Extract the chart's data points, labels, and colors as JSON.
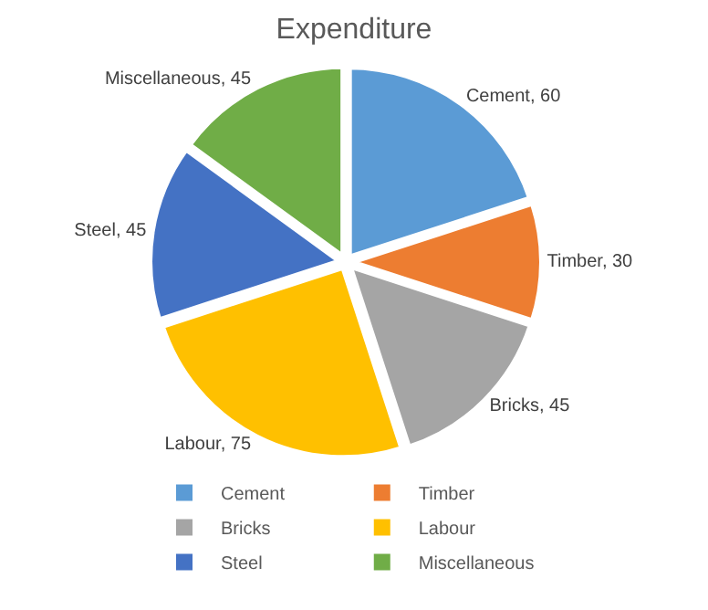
{
  "chart_data": {
    "type": "pie",
    "title": "Expenditure",
    "categories": [
      "Cement",
      "Timber",
      "Bricks",
      "Labour",
      "Steel",
      "Miscellaneous"
    ],
    "values": [
      60,
      30,
      45,
      75,
      45,
      45
    ],
    "colors": [
      "#5b9bd5",
      "#ed7d31",
      "#a5a5a5",
      "#ffc000",
      "#4472c4",
      "#70ad47"
    ],
    "value_labels": [
      "Cement, 60",
      "Timber, 30",
      "Bricks, 45",
      "Labour, 75",
      "Steel, 45",
      "Miscellaneous, 45"
    ],
    "legend": "bottom"
  }
}
